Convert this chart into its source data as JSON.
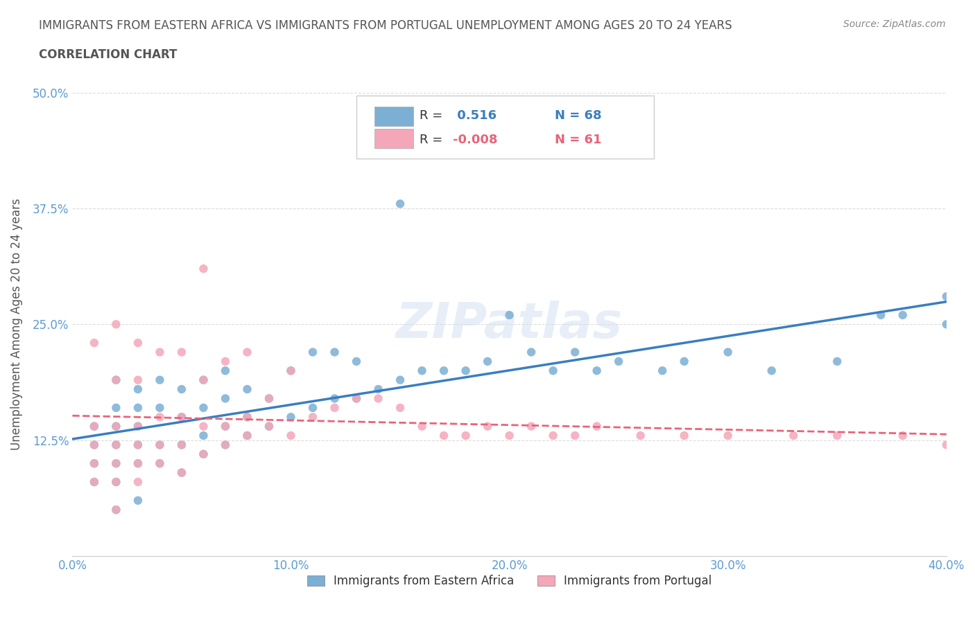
{
  "title_line1": "IMMIGRANTS FROM EASTERN AFRICA VS IMMIGRANTS FROM PORTUGAL UNEMPLOYMENT AMONG AGES 20 TO 24 YEARS",
  "title_line2": "CORRELATION CHART",
  "source_text": "Source: ZipAtlas.com",
  "ylabel": "Unemployment Among Ages 20 to 24 years",
  "xlim": [
    0.0,
    0.4
  ],
  "ylim": [
    0.0,
    0.5
  ],
  "xticks": [
    0.0,
    0.1,
    0.2,
    0.3,
    0.4
  ],
  "xtick_labels": [
    "0.0%",
    "10.0%",
    "20.0%",
    "30.0%",
    "40.0%"
  ],
  "yticks": [
    0.0,
    0.125,
    0.25,
    0.375,
    0.5
  ],
  "ytick_labels": [
    "",
    "12.5%",
    "25.0%",
    "37.5%",
    "50.0%"
  ],
  "blue_R": 0.516,
  "blue_N": 68,
  "pink_R": -0.008,
  "pink_N": 61,
  "blue_color": "#7bafd4",
  "pink_color": "#f4a7b9",
  "blue_line_color": "#3a7ebf",
  "pink_line_color": "#e8637a",
  "legend_label_blue": "Immigrants from Eastern Africa",
  "legend_label_pink": "Immigrants from Portugal",
  "blue_scatter_x": [
    0.01,
    0.01,
    0.01,
    0.01,
    0.02,
    0.02,
    0.02,
    0.02,
    0.02,
    0.02,
    0.02,
    0.03,
    0.03,
    0.03,
    0.03,
    0.03,
    0.03,
    0.04,
    0.04,
    0.04,
    0.04,
    0.05,
    0.05,
    0.05,
    0.05,
    0.06,
    0.06,
    0.06,
    0.06,
    0.07,
    0.07,
    0.07,
    0.07,
    0.08,
    0.08,
    0.08,
    0.09,
    0.09,
    0.1,
    0.1,
    0.11,
    0.11,
    0.12,
    0.12,
    0.13,
    0.13,
    0.14,
    0.15,
    0.15,
    0.16,
    0.17,
    0.18,
    0.19,
    0.2,
    0.21,
    0.22,
    0.23,
    0.24,
    0.25,
    0.27,
    0.28,
    0.3,
    0.32,
    0.35,
    0.37,
    0.38,
    0.4,
    0.4
  ],
  "blue_scatter_y": [
    0.08,
    0.1,
    0.12,
    0.14,
    0.05,
    0.08,
    0.1,
    0.12,
    0.14,
    0.16,
    0.19,
    0.06,
    0.1,
    0.12,
    0.14,
    0.16,
    0.18,
    0.1,
    0.12,
    0.16,
    0.19,
    0.09,
    0.12,
    0.15,
    0.18,
    0.11,
    0.13,
    0.16,
    0.19,
    0.12,
    0.14,
    0.17,
    0.2,
    0.13,
    0.15,
    0.18,
    0.14,
    0.17,
    0.15,
    0.2,
    0.16,
    0.22,
    0.17,
    0.22,
    0.17,
    0.21,
    0.18,
    0.19,
    0.38,
    0.2,
    0.2,
    0.2,
    0.21,
    0.26,
    0.22,
    0.2,
    0.22,
    0.2,
    0.21,
    0.2,
    0.21,
    0.22,
    0.2,
    0.21,
    0.26,
    0.26,
    0.25,
    0.28
  ],
  "pink_scatter_x": [
    0.01,
    0.01,
    0.01,
    0.01,
    0.01,
    0.02,
    0.02,
    0.02,
    0.02,
    0.02,
    0.02,
    0.02,
    0.03,
    0.03,
    0.03,
    0.03,
    0.03,
    0.03,
    0.04,
    0.04,
    0.04,
    0.04,
    0.05,
    0.05,
    0.05,
    0.05,
    0.06,
    0.06,
    0.06,
    0.06,
    0.07,
    0.07,
    0.07,
    0.08,
    0.08,
    0.08,
    0.09,
    0.09,
    0.1,
    0.1,
    0.11,
    0.12,
    0.13,
    0.14,
    0.15,
    0.16,
    0.17,
    0.18,
    0.19,
    0.2,
    0.21,
    0.22,
    0.23,
    0.24,
    0.26,
    0.28,
    0.3,
    0.33,
    0.35,
    0.38,
    0.4
  ],
  "pink_scatter_y": [
    0.08,
    0.1,
    0.12,
    0.14,
    0.23,
    0.05,
    0.08,
    0.1,
    0.12,
    0.14,
    0.19,
    0.25,
    0.08,
    0.1,
    0.12,
    0.14,
    0.19,
    0.23,
    0.1,
    0.12,
    0.15,
    0.22,
    0.09,
    0.12,
    0.15,
    0.22,
    0.11,
    0.14,
    0.19,
    0.31,
    0.12,
    0.14,
    0.21,
    0.13,
    0.15,
    0.22,
    0.14,
    0.17,
    0.13,
    0.2,
    0.15,
    0.16,
    0.17,
    0.17,
    0.16,
    0.14,
    0.13,
    0.13,
    0.14,
    0.13,
    0.14,
    0.13,
    0.13,
    0.14,
    0.13,
    0.13,
    0.13,
    0.13,
    0.13,
    0.13,
    0.12
  ],
  "background_color": "#ffffff",
  "grid_color": "#cccccc",
  "title_color": "#555555",
  "axis_label_color": "#555555",
  "tick_label_color": "#5b9bd5",
  "source_color": "#888888",
  "watermark_color": "#d0dff0"
}
